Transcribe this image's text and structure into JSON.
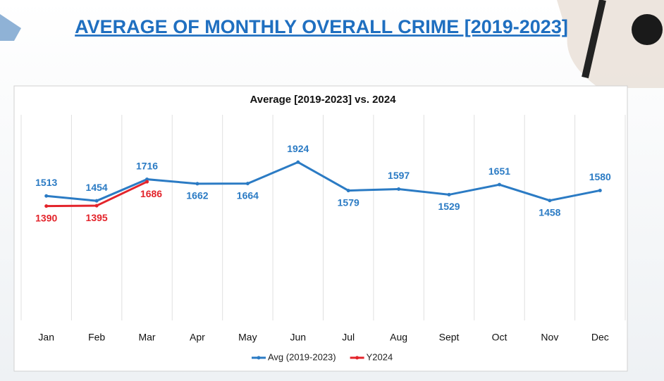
{
  "title": "AVERAGE OF MONTHLY OVERALL CRIME [2019-2023]",
  "chart_data": {
    "type": "line",
    "title": "Average [2019-2023] vs. 2024",
    "categories": [
      "Jan",
      "Feb",
      "Mar",
      "Apr",
      "May",
      "Jun",
      "Jul",
      "Aug",
      "Sept",
      "Oct",
      "Nov",
      "Dec"
    ],
    "series": [
      {
        "name": "Avg (2019-2023)",
        "color": "#2b7bc4",
        "values": [
          1513,
          1454,
          1716,
          1662,
          1664,
          1924,
          1579,
          1597,
          1529,
          1651,
          1458,
          1580
        ]
      },
      {
        "name": "Y2024",
        "color": "#e3242b",
        "values": [
          1390,
          1395,
          1686,
          null,
          null,
          null,
          null,
          null,
          null,
          null,
          null,
          null
        ]
      }
    ],
    "ylim": [
      0,
      2500
    ],
    "grid": true,
    "legend": "bottom"
  }
}
